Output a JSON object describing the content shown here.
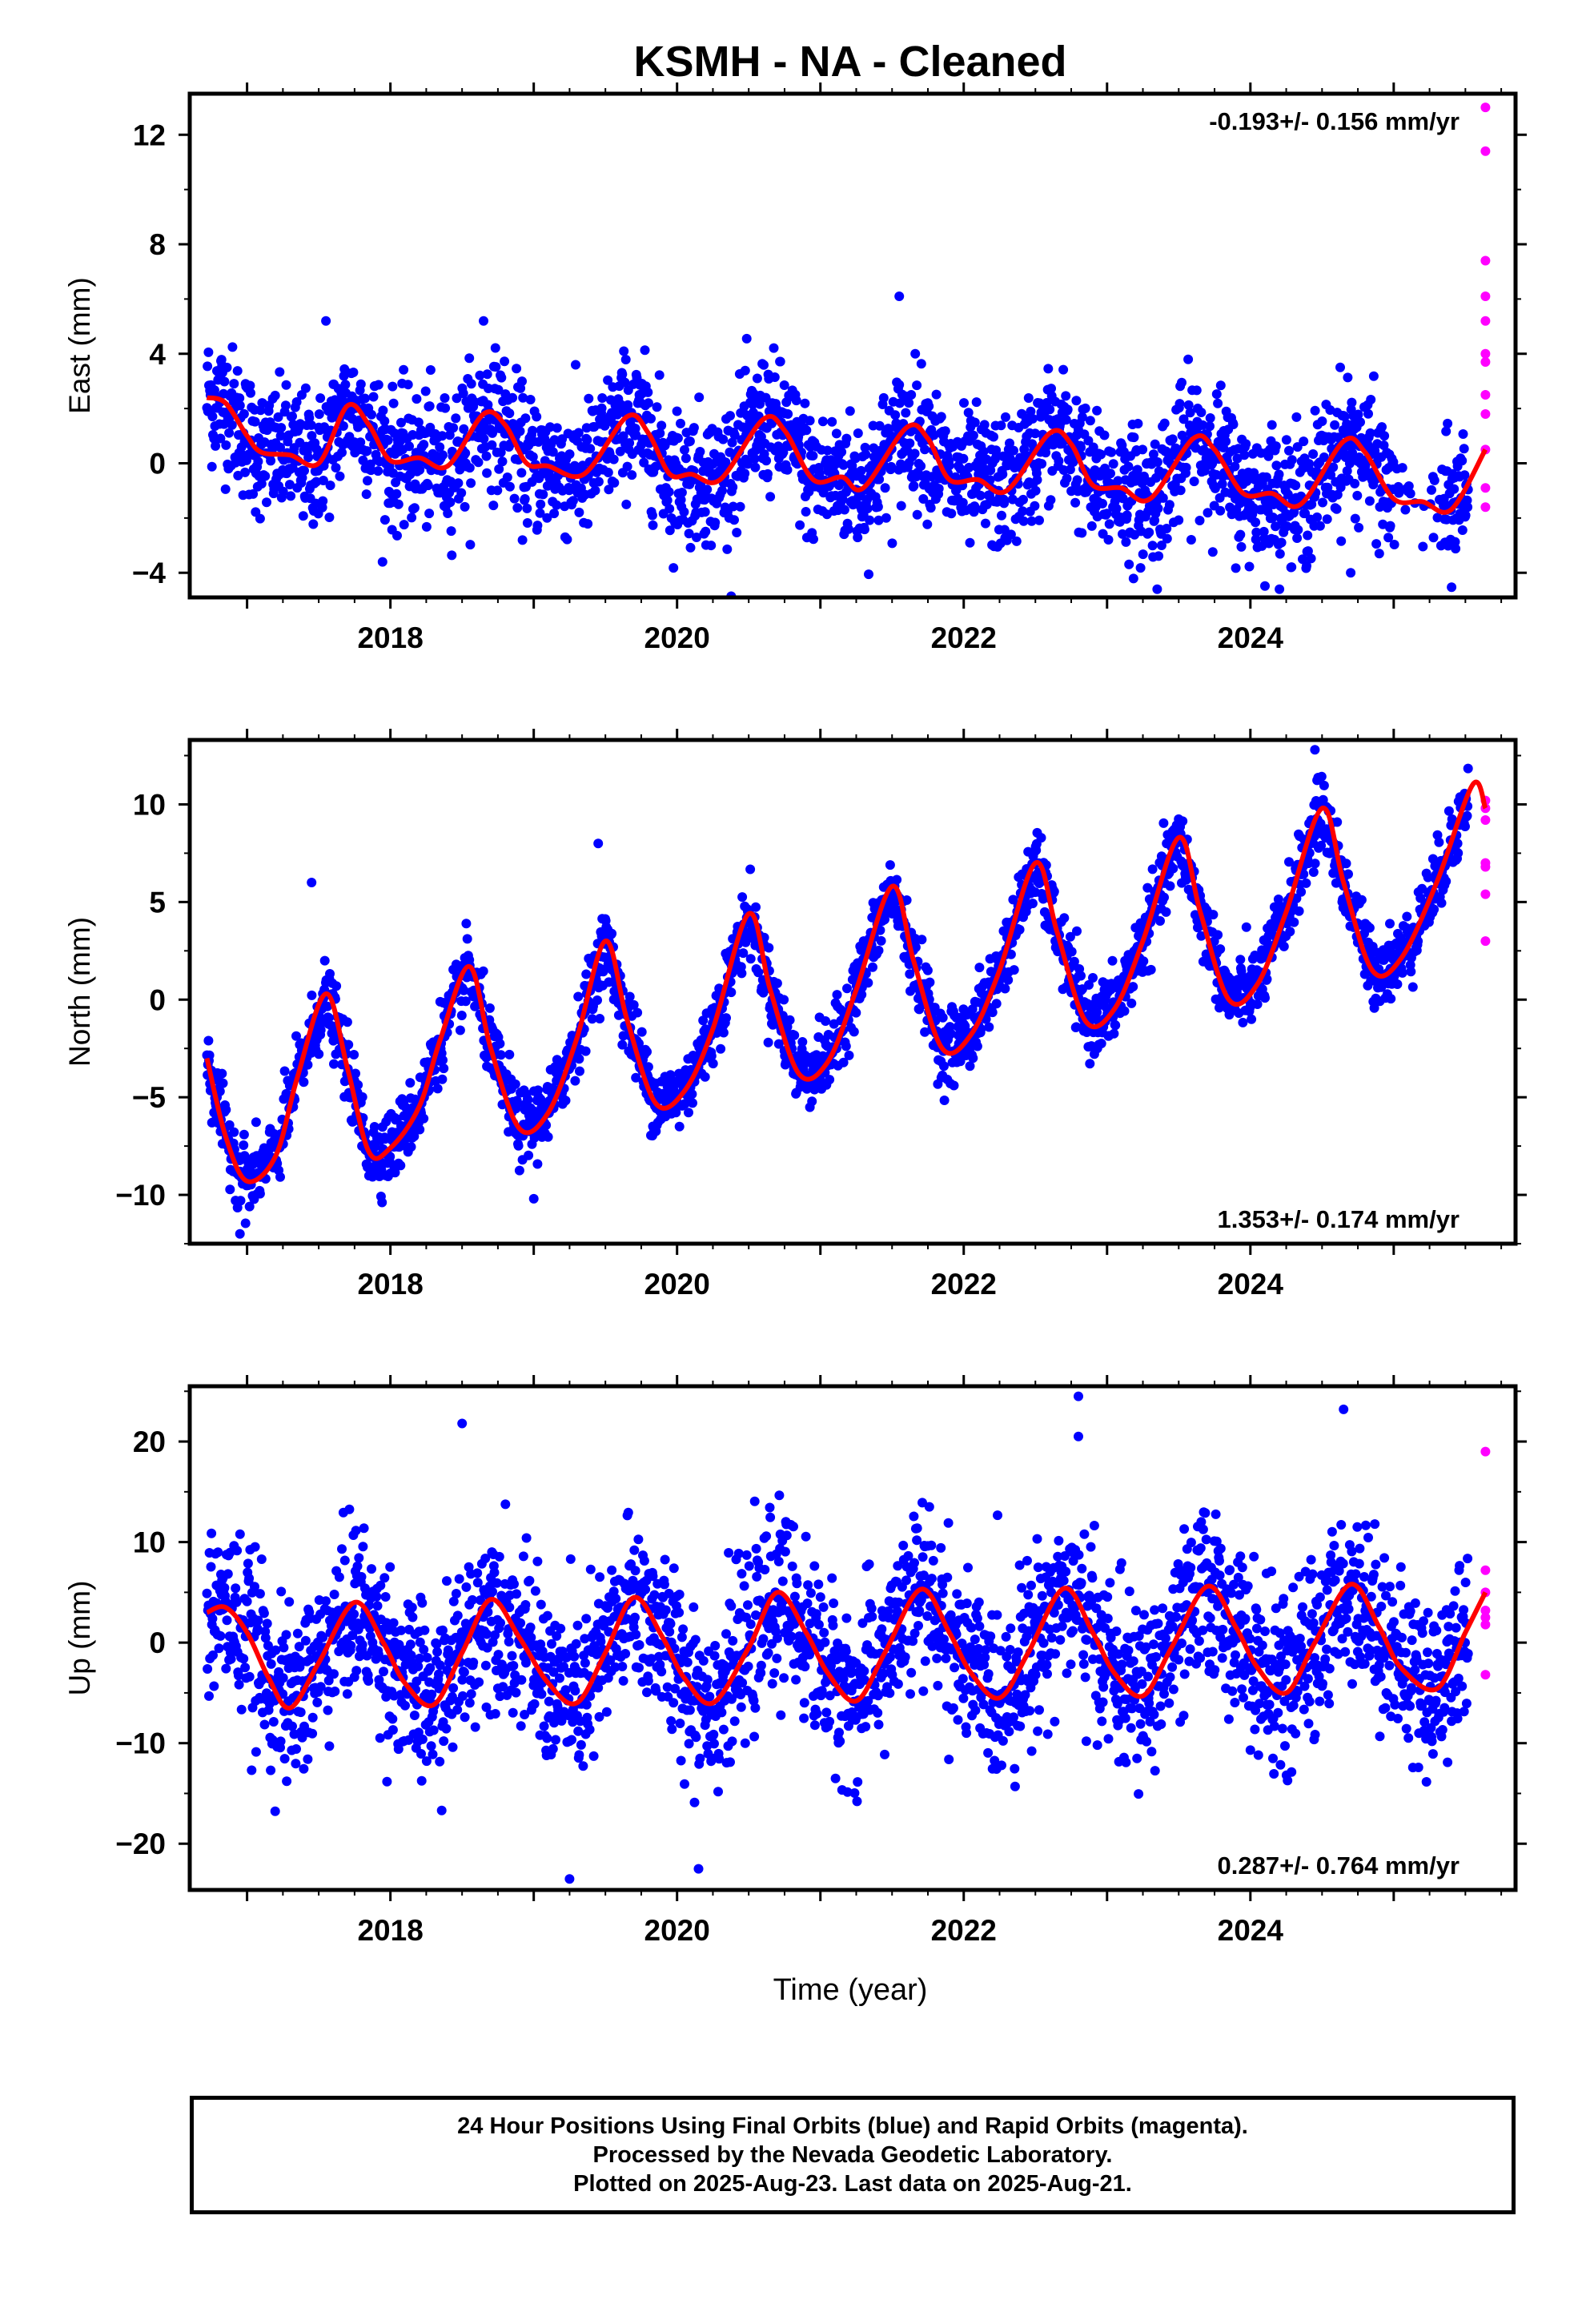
{
  "title": "KSMH  - NA - Cleaned",
  "colors": {
    "final_orbits": "#0000ff",
    "rapid_orbits": "#ff00ff",
    "model_fit": "#ff0000",
    "axes": "#000000"
  },
  "xaxis": {
    "label": "Time (year)",
    "ticks": [
      "2018",
      "2020",
      "2022",
      "2024"
    ]
  },
  "chart_data": [
    {
      "type": "scatter",
      "panel": "east",
      "ylabel": "East (mm)",
      "ylim": [
        -4.9,
        13.5
      ],
      "yticks": [
        "12",
        "8",
        "4",
        "0",
        "-4"
      ],
      "rate": "-0.193+/- 0.156 mm/yr",
      "rate_position": "top-right",
      "xlim": [
        2016.6,
        2025.85
      ],
      "time_span": [
        2016.72,
        2025.64
      ],
      "model_fit": [
        [
          2016.72,
          2.4
        ],
        [
          2016.85,
          2.2
        ],
        [
          2017.0,
          1.0
        ],
        [
          2017.1,
          0.4
        ],
        [
          2017.3,
          0.3
        ],
        [
          2017.5,
          0.0
        ],
        [
          2017.7,
          2.1
        ],
        [
          2017.85,
          1.4
        ],
        [
          2018.0,
          0.1
        ],
        [
          2018.2,
          0.2
        ],
        [
          2018.4,
          -0.1
        ],
        [
          2018.65,
          1.8
        ],
        [
          2018.8,
          1.4
        ],
        [
          2018.95,
          0.0
        ],
        [
          2019.1,
          -0.1
        ],
        [
          2019.35,
          -0.4
        ],
        [
          2019.65,
          1.7
        ],
        [
          2019.8,
          1.1
        ],
        [
          2019.95,
          -0.4
        ],
        [
          2020.1,
          -0.4
        ],
        [
          2020.3,
          -0.6
        ],
        [
          2020.6,
          1.6
        ],
        [
          2020.75,
          1.2
        ],
        [
          2020.95,
          -0.6
        ],
        [
          2021.15,
          -0.5
        ],
        [
          2021.3,
          -0.9
        ],
        [
          2021.6,
          1.3
        ],
        [
          2021.75,
          0.9
        ],
        [
          2021.9,
          -0.6
        ],
        [
          2022.1,
          -0.6
        ],
        [
          2022.3,
          -1.0
        ],
        [
          2022.6,
          1.1
        ],
        [
          2022.75,
          0.7
        ],
        [
          2022.9,
          -0.8
        ],
        [
          2023.1,
          -0.9
        ],
        [
          2023.3,
          -1.3
        ],
        [
          2023.6,
          0.9
        ],
        [
          2023.75,
          0.5
        ],
        [
          2023.95,
          -1.1
        ],
        [
          2024.15,
          -1.1
        ],
        [
          2024.35,
          -1.5
        ],
        [
          2024.65,
          0.8
        ],
        [
          2024.8,
          0.4
        ],
        [
          2025.0,
          -1.3
        ],
        [
          2025.2,
          -1.4
        ],
        [
          2025.4,
          -1.7
        ],
        [
          2025.64,
          0.5
        ]
      ],
      "scatter_stddev": 1.2,
      "rapid_points": [
        13.0,
        11.4,
        7.4,
        6.1,
        5.2,
        4.0,
        3.7,
        2.5,
        1.8,
        0.5,
        -0.9,
        -1.6
      ],
      "outliers": [
        [
          2017.55,
          5.2
        ],
        [
          2018.65,
          5.2
        ],
        [
          2021.55,
          6.1
        ],
        [
          2023.35,
          -4.6
        ],
        [
          2024.7,
          -4.0
        ]
      ]
    },
    {
      "type": "scatter",
      "panel": "north",
      "ylabel": "North (mm)",
      "ylim": [
        -12.5,
        13.3
      ],
      "yticks": [
        "10",
        "5",
        "0",
        "-5",
        "-10"
      ],
      "rate": "1.353+/- 0.174 mm/yr",
      "rate_position": "bottom-right",
      "xlim": [
        2016.6,
        2025.85
      ],
      "time_span": [
        2016.72,
        2025.64
      ],
      "model_fit": [
        [
          2016.72,
          -3.0
        ],
        [
          2016.85,
          -7.0
        ],
        [
          2017.0,
          -9.3
        ],
        [
          2017.2,
          -8.0
        ],
        [
          2017.35,
          -4.0
        ],
        [
          2017.55,
          0.3
        ],
        [
          2017.7,
          -3.5
        ],
        [
          2017.85,
          -7.8
        ],
        [
          2018.0,
          -7.6
        ],
        [
          2018.2,
          -5.5
        ],
        [
          2018.35,
          -2.0
        ],
        [
          2018.55,
          1.7
        ],
        [
          2018.7,
          -2.5
        ],
        [
          2018.9,
          -6.6
        ],
        [
          2019.1,
          -5.8
        ],
        [
          2019.3,
          -2.0
        ],
        [
          2019.5,
          3.0
        ],
        [
          2019.65,
          -1.0
        ],
        [
          2019.85,
          -5.3
        ],
        [
          2020.05,
          -4.7
        ],
        [
          2020.25,
          -1.5
        ],
        [
          2020.5,
          4.4
        ],
        [
          2020.65,
          0.5
        ],
        [
          2020.85,
          -3.8
        ],
        [
          2021.05,
          -3.2
        ],
        [
          2021.25,
          0.5
        ],
        [
          2021.5,
          5.8
        ],
        [
          2021.65,
          2.0
        ],
        [
          2021.85,
          -2.5
        ],
        [
          2022.05,
          -1.8
        ],
        [
          2022.25,
          1.5
        ],
        [
          2022.5,
          7.0
        ],
        [
          2022.65,
          3.5
        ],
        [
          2022.85,
          -1.1
        ],
        [
          2023.05,
          -0.5
        ],
        [
          2023.25,
          3.0
        ],
        [
          2023.5,
          8.3
        ],
        [
          2023.65,
          4.5
        ],
        [
          2023.85,
          0.0
        ],
        [
          2024.05,
          0.8
        ],
        [
          2024.25,
          4.5
        ],
        [
          2024.5,
          9.8
        ],
        [
          2024.65,
          6.0
        ],
        [
          2024.85,
          1.5
        ],
        [
          2025.05,
          2.1
        ],
        [
          2025.3,
          6.0
        ],
        [
          2025.55,
          11.0
        ],
        [
          2025.64,
          9.8
        ]
      ],
      "scatter_stddev": 0.9,
      "rapid_points": [
        10.2,
        9.8,
        9.2,
        7.0,
        6.8,
        5.4,
        3.0
      ],
      "outliers": [
        [
          2017.45,
          6.0
        ],
        [
          2019.45,
          8.0
        ],
        [
          2019.0,
          -10.2
        ],
        [
          2016.95,
          -12.0
        ],
        [
          2024.45,
          12.8
        ]
      ]
    },
    {
      "type": "scatter",
      "panel": "up",
      "ylabel": "Up (mm)",
      "ylim": [
        -24.6,
        25.5
      ],
      "yticks": [
        "20",
        "10",
        "0",
        "-10",
        "-20"
      ],
      "rate": "0.287+/- 0.764 mm/yr",
      "rate_position": "bottom-right",
      "xlim": [
        2016.6,
        2025.85
      ],
      "time_span": [
        2016.72,
        2025.64
      ],
      "model_fit": [
        [
          2016.72,
          3.0
        ],
        [
          2016.85,
          3.5
        ],
        [
          2017.0,
          1.0
        ],
        [
          2017.15,
          -3.5
        ],
        [
          2017.3,
          -6.5
        ],
        [
          2017.5,
          -2.0
        ],
        [
          2017.75,
          4.0
        ],
        [
          2017.95,
          0.0
        ],
        [
          2018.1,
          -4.0
        ],
        [
          2018.3,
          -6.2
        ],
        [
          2018.5,
          -1.0
        ],
        [
          2018.7,
          4.3
        ],
        [
          2018.9,
          0.5
        ],
        [
          2019.1,
          -4.0
        ],
        [
          2019.3,
          -6.0
        ],
        [
          2019.5,
          -1.0
        ],
        [
          2019.7,
          4.5
        ],
        [
          2019.9,
          0.5
        ],
        [
          2020.05,
          -3.5
        ],
        [
          2020.25,
          -6.0
        ],
        [
          2020.5,
          -0.5
        ],
        [
          2020.7,
          5.0
        ],
        [
          2020.9,
          1.0
        ],
        [
          2021.05,
          -3.0
        ],
        [
          2021.25,
          -5.8
        ],
        [
          2021.45,
          -1.0
        ],
        [
          2021.7,
          5.3
        ],
        [
          2021.9,
          1.0
        ],
        [
          2022.05,
          -3.0
        ],
        [
          2022.25,
          -5.5
        ],
        [
          2022.45,
          -1.0
        ],
        [
          2022.7,
          5.4
        ],
        [
          2022.9,
          1.0
        ],
        [
          2023.05,
          -3.0
        ],
        [
          2023.25,
          -5.3
        ],
        [
          2023.45,
          -0.5
        ],
        [
          2023.7,
          5.6
        ],
        [
          2023.9,
          1.5
        ],
        [
          2024.05,
          -2.5
        ],
        [
          2024.25,
          -5.0
        ],
        [
          2024.45,
          0.0
        ],
        [
          2024.7,
          5.8
        ],
        [
          2024.9,
          1.5
        ],
        [
          2025.05,
          -2.5
        ],
        [
          2025.3,
          -4.6
        ],
        [
          2025.5,
          1.0
        ],
        [
          2025.64,
          5.0
        ]
      ],
      "scatter_stddev": 4.2,
      "rapid_points": [
        19.0,
        7.2,
        5.0,
        3.2,
        2.5,
        1.8,
        -3.2
      ],
      "outliers": [
        [
          2018.5,
          21.8
        ],
        [
          2022.8,
          24.5
        ],
        [
          2024.65,
          23.2
        ],
        [
          2019.25,
          -23.5
        ],
        [
          2020.15,
          -22.5
        ],
        [
          2022.8,
          20.5
        ]
      ]
    }
  ],
  "footer": {
    "line1": "24 Hour Positions Using Final Orbits (blue) and Rapid Orbits (magenta).",
    "line2": "Processed by the Nevada Geodetic Laboratory.",
    "line3": "Plotted on 2025-Aug-23. Last data on 2025-Aug-21."
  }
}
